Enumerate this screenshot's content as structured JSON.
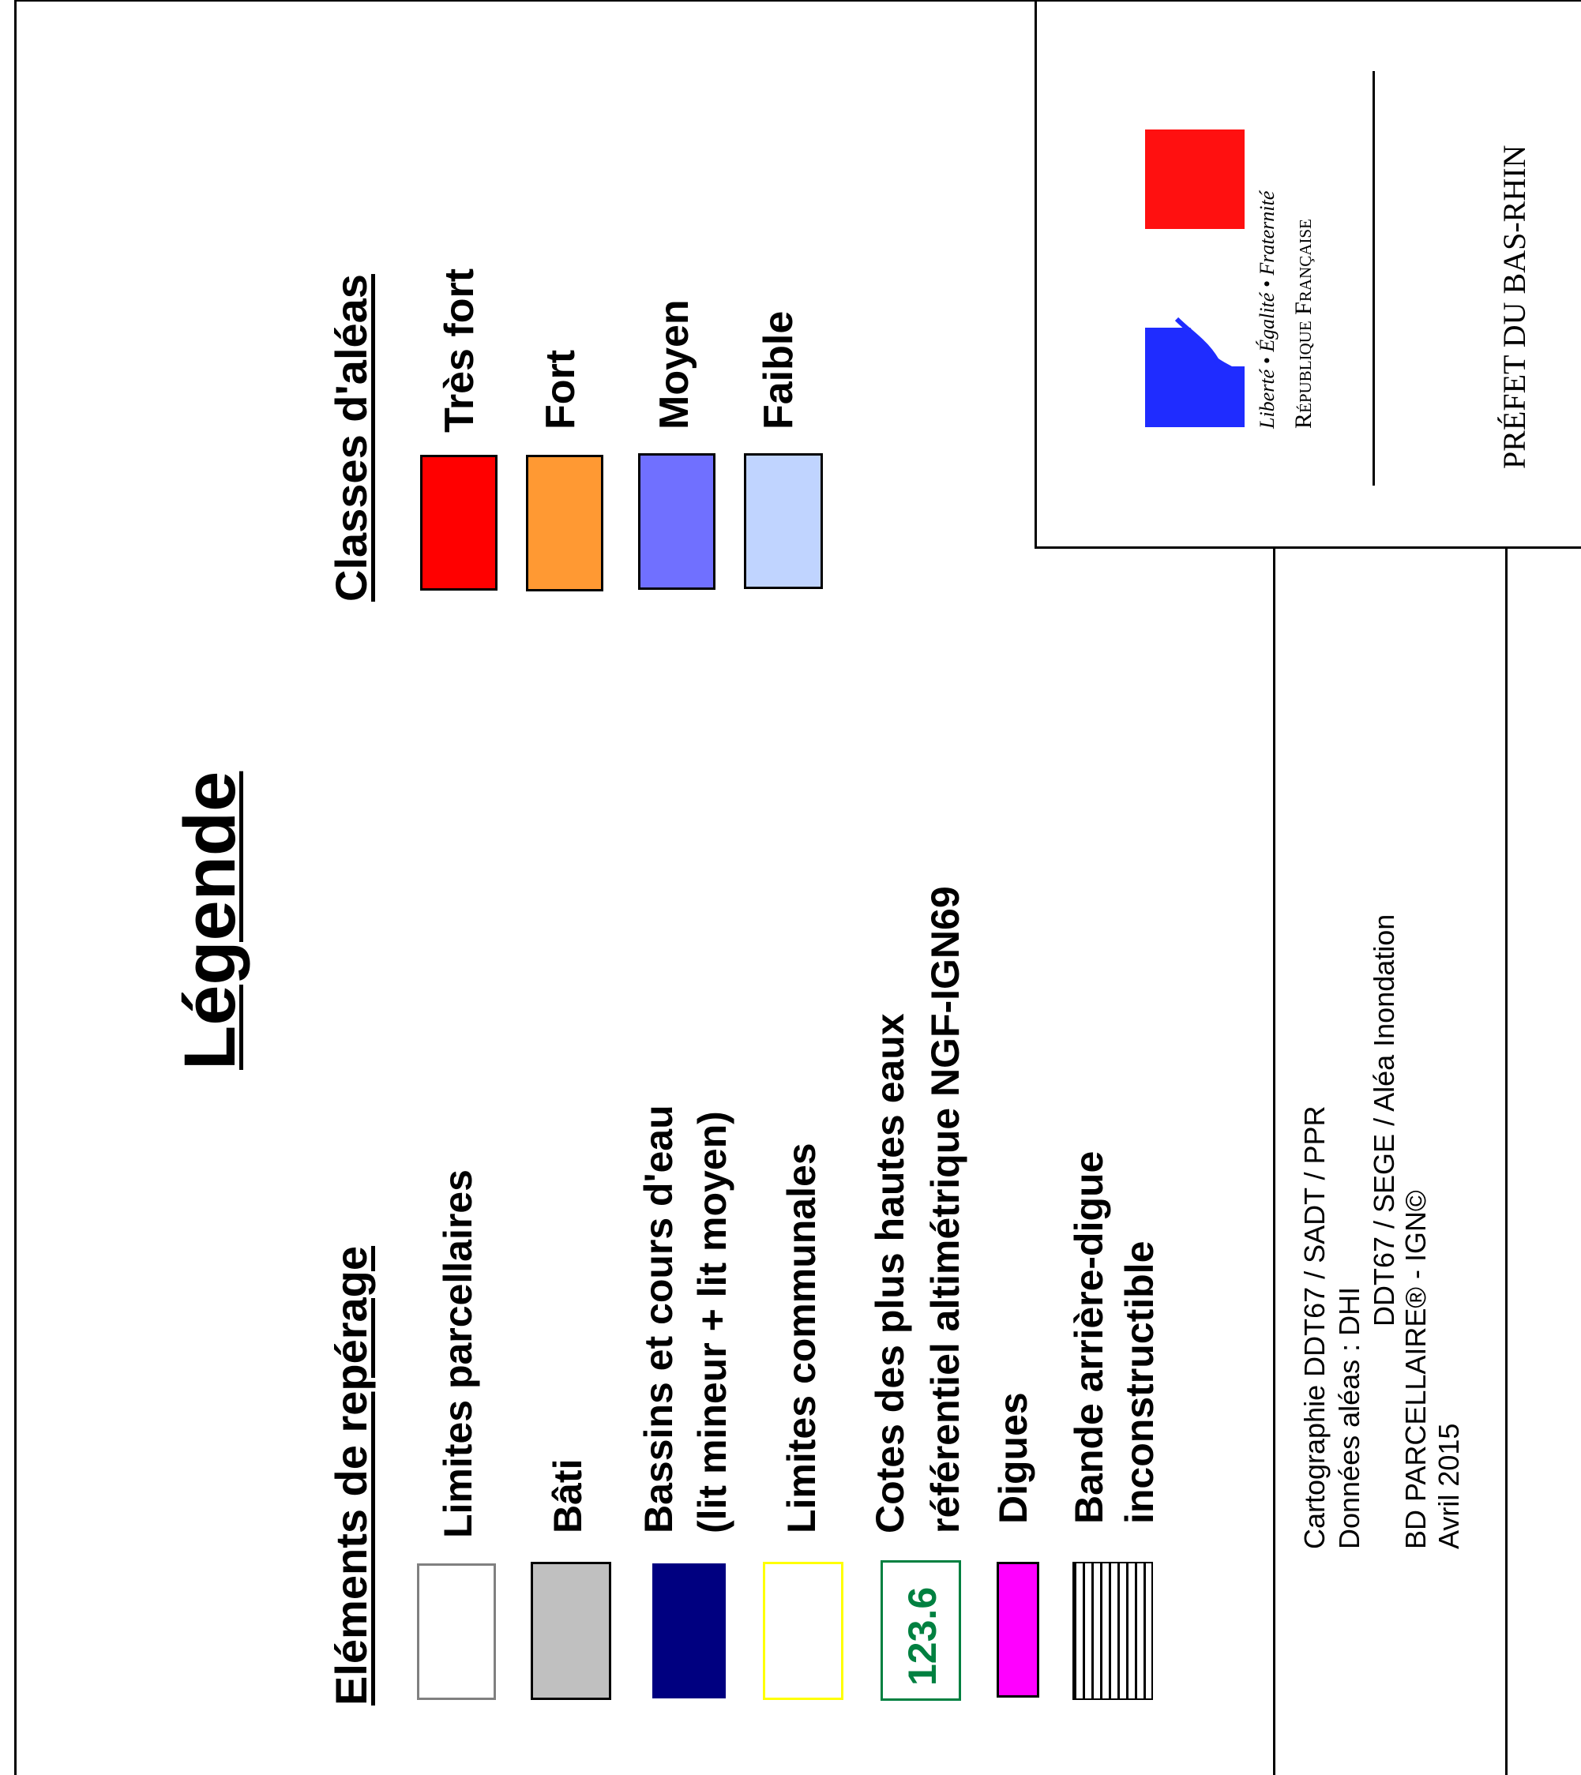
{
  "title": "Légende",
  "reperage": {
    "heading": "Eléments de repérage",
    "items": [
      {
        "label": "Limites parcellaires",
        "fill": "#ffffff",
        "border": "#808080"
      },
      {
        "label": "Bâti",
        "fill": "#c0c0c0",
        "border": "#000000"
      },
      {
        "label_lines": [
          "Bassins et cours d'eau",
          "(lit mineur + lit moyen)"
        ],
        "fill": "#000080",
        "border": "#000080"
      },
      {
        "label": "Limites communales",
        "fill": "#ffffff",
        "border": "#ffff00"
      },
      {
        "label_lines": [
          "Cotes des plus hautes eaux",
          "référentiel altimétrique NGF-IGN69"
        ],
        "sample_text": "123.6",
        "text_color": "#008040",
        "border": "#008040"
      },
      {
        "label": "Digues",
        "fill": "#ff00ff",
        "border": "#000000"
      },
      {
        "label_lines": [
          "Bande arrière-digue",
          "inconstructible"
        ],
        "pattern": "vertical-hatch"
      }
    ]
  },
  "aleas": {
    "heading": "Classes d'aléas",
    "items": [
      {
        "label": "Très fort",
        "fill": "#ff0000"
      },
      {
        "label": "Fort",
        "fill": "#ff9933"
      },
      {
        "label": "Moyen",
        "fill": "#7070ff"
      },
      {
        "label": "Faible",
        "fill": "#c0d4ff"
      }
    ]
  },
  "credits": {
    "lines": [
      "Cartographie DDT67 / SADT / PPR",
      "Données aléas : DHI",
      "DDT67 / SEGE / Aléa Inondation",
      "BD PARCELLAIRE® - IGN©",
      "Avril 2015"
    ]
  },
  "logo": {
    "motto": "Liberté • Égalité • Fraternité",
    "republic": "République Française",
    "colors": {
      "blue": "#1f2cff",
      "white": "#ffffff",
      "red": "#ff1010"
    }
  },
  "prefet": "PRÉFET DU BAS-RHIN"
}
